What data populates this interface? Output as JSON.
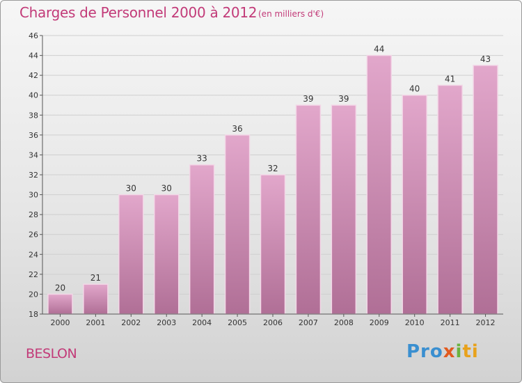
{
  "header": {
    "title": "Charges de Personnel 2000 à 2012",
    "subtitle": "(en milliers d'€)"
  },
  "footer": {
    "commune": "BESLON",
    "logo": [
      "Pro",
      "x",
      "i",
      "ti"
    ]
  },
  "chart_data": {
    "type": "bar",
    "title": "Charges de Personnel 2000 à 2012",
    "subtitle": "(en milliers d'€)",
    "xlabel": "",
    "ylabel": "",
    "categories": [
      "2000",
      "2001",
      "2002",
      "2003",
      "2004",
      "2005",
      "2006",
      "2007",
      "2008",
      "2009",
      "2010",
      "2011",
      "2012"
    ],
    "values": [
      20,
      21,
      30,
      30,
      33,
      36,
      32,
      39,
      39,
      44,
      40,
      41,
      43
    ],
    "ylim": [
      18,
      46
    ],
    "yticks": [
      18,
      20,
      22,
      24,
      26,
      28,
      30,
      32,
      34,
      36,
      38,
      40,
      42,
      44,
      46
    ],
    "grid": true,
    "colors": {
      "bar_top": "#e2a7cb",
      "bar_bottom": "#b06f96",
      "bar_edge": "#f3d7e7",
      "title": "#c23a78"
    }
  }
}
